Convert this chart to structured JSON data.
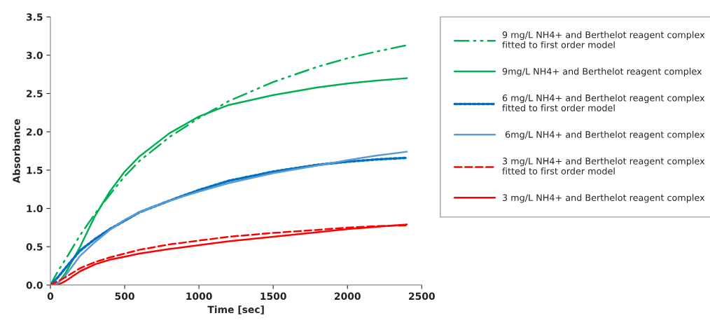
{
  "chart_data": {
    "type": "line",
    "xlabel": "Time [sec]",
    "ylabel": "Absorbance",
    "x": [
      0,
      50,
      100,
      200,
      300,
      400,
      500,
      600,
      800,
      1000,
      1200,
      1500,
      1800,
      2000,
      2200,
      2400
    ],
    "series": [
      {
        "name": "9 mg/L NH4+ and Berthelot reagent complex\nfitted to first order model",
        "color": "#00b050",
        "line_style": "dashdot",
        "values": [
          0,
          0.18,
          0.33,
          0.65,
          0.93,
          1.18,
          1.42,
          1.62,
          1.93,
          2.18,
          2.4,
          2.65,
          2.85,
          2.96,
          3.05,
          3.13
        ]
      },
      {
        "name": "9mg/L NH4+ and Berthelot reagent complex",
        "color": "#00b050",
        "line_style": "solid",
        "values": [
          0,
          0.02,
          0.15,
          0.5,
          0.9,
          1.22,
          1.48,
          1.68,
          1.98,
          2.2,
          2.35,
          2.48,
          2.58,
          2.63,
          2.67,
          2.7
        ]
      },
      {
        "name": "6 mg/L NH4+ and Berthelot reagent complex\nfitted to first order model",
        "color": "#0070c0",
        "line_style": "dotted",
        "values": [
          0,
          0.1,
          0.22,
          0.45,
          0.6,
          0.73,
          0.84,
          0.95,
          1.1,
          1.24,
          1.36,
          1.48,
          1.57,
          1.61,
          1.64,
          1.66
        ]
      },
      {
        "name": " 6mg/L NH4+ and Berthelot reagent complex",
        "color": "#5b9bd5",
        "line_style": "solid",
        "values": [
          0,
          0.02,
          0.12,
          0.38,
          0.56,
          0.72,
          0.85,
          0.95,
          1.1,
          1.22,
          1.33,
          1.46,
          1.56,
          1.63,
          1.69,
          1.74
        ]
      },
      {
        "name": "3 mg/L NH4+ and Berthelot reagent complex\nfitted to first order model",
        "color": "#ff0000",
        "line_style": "dashed",
        "values": [
          0,
          0.05,
          0.1,
          0.22,
          0.3,
          0.36,
          0.41,
          0.46,
          0.53,
          0.58,
          0.63,
          0.68,
          0.72,
          0.75,
          0.77,
          0.78
        ]
      },
      {
        "name": "3 mg/L NH4+ and Berthelot reagent complex",
        "color": "#ff0000",
        "line_style": "solid",
        "values": [
          0,
          0,
          0.05,
          0.18,
          0.27,
          0.33,
          0.37,
          0.41,
          0.47,
          0.52,
          0.57,
          0.63,
          0.69,
          0.73,
          0.76,
          0.79
        ]
      }
    ],
    "xlim": [
      0,
      2500
    ],
    "xticks": [
      0,
      500,
      1000,
      1500,
      2000,
      2500
    ],
    "ylim": [
      0,
      3.5
    ],
    "yticks": [
      {
        "value": 0,
        "label": "0.0"
      },
      {
        "value": 0.5,
        "label": "0.5"
      },
      {
        "value": 1,
        "label": "1.0"
      },
      {
        "value": 1.5,
        "label": "1.5"
      },
      {
        "value": 2,
        "label": "2.0"
      },
      {
        "value": 2.5,
        "label": "2.5"
      },
      {
        "value": 3,
        "label": "3.0"
      },
      {
        "value": 3.5,
        "label": "3.5"
      }
    ],
    "grid": false,
    "legend": "right",
    "marker": "none"
  }
}
